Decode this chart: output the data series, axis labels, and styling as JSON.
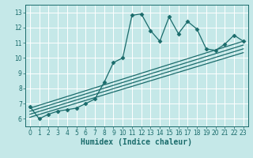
{
  "bg_color": "#c5e8e8",
  "grid_color": "#aed4d4",
  "line_color": "#1a6b6b",
  "marker_color": "#1a6b6b",
  "xlabel": "Humidex (Indice chaleur)",
  "xlim": [
    -0.5,
    23.5
  ],
  "ylim": [
    5.5,
    13.5
  ],
  "xticks": [
    0,
    1,
    2,
    3,
    4,
    5,
    6,
    7,
    8,
    9,
    10,
    11,
    12,
    13,
    14,
    15,
    16,
    17,
    18,
    19,
    20,
    21,
    22,
    23
  ],
  "yticks": [
    6,
    7,
    8,
    9,
    10,
    11,
    12,
    13
  ],
  "main_line": {
    "x": [
      0,
      1,
      2,
      3,
      4,
      5,
      6,
      7,
      8,
      9,
      10,
      11,
      12,
      13,
      14,
      15,
      16,
      17,
      18,
      19,
      20,
      21,
      22,
      23
    ],
    "y": [
      6.8,
      6.0,
      6.3,
      6.5,
      6.6,
      6.7,
      7.0,
      7.3,
      8.4,
      9.7,
      10.0,
      12.8,
      12.9,
      11.8,
      11.1,
      12.7,
      11.6,
      12.4,
      11.9,
      10.6,
      10.5,
      10.9,
      11.5,
      11.1
    ]
  },
  "smooth_lines": [
    {
      "x": [
        0,
        23
      ],
      "y": [
        6.7,
        11.1
      ]
    },
    {
      "x": [
        0,
        23
      ],
      "y": [
        6.5,
        10.85
      ]
    },
    {
      "x": [
        0,
        23
      ],
      "y": [
        6.3,
        10.6
      ]
    },
    {
      "x": [
        0,
        23
      ],
      "y": [
        6.1,
        10.35
      ]
    }
  ],
  "xlabel_fontsize": 7,
  "tick_fontsize": 5.5,
  "linewidth": 0.9,
  "markersize": 2.5
}
